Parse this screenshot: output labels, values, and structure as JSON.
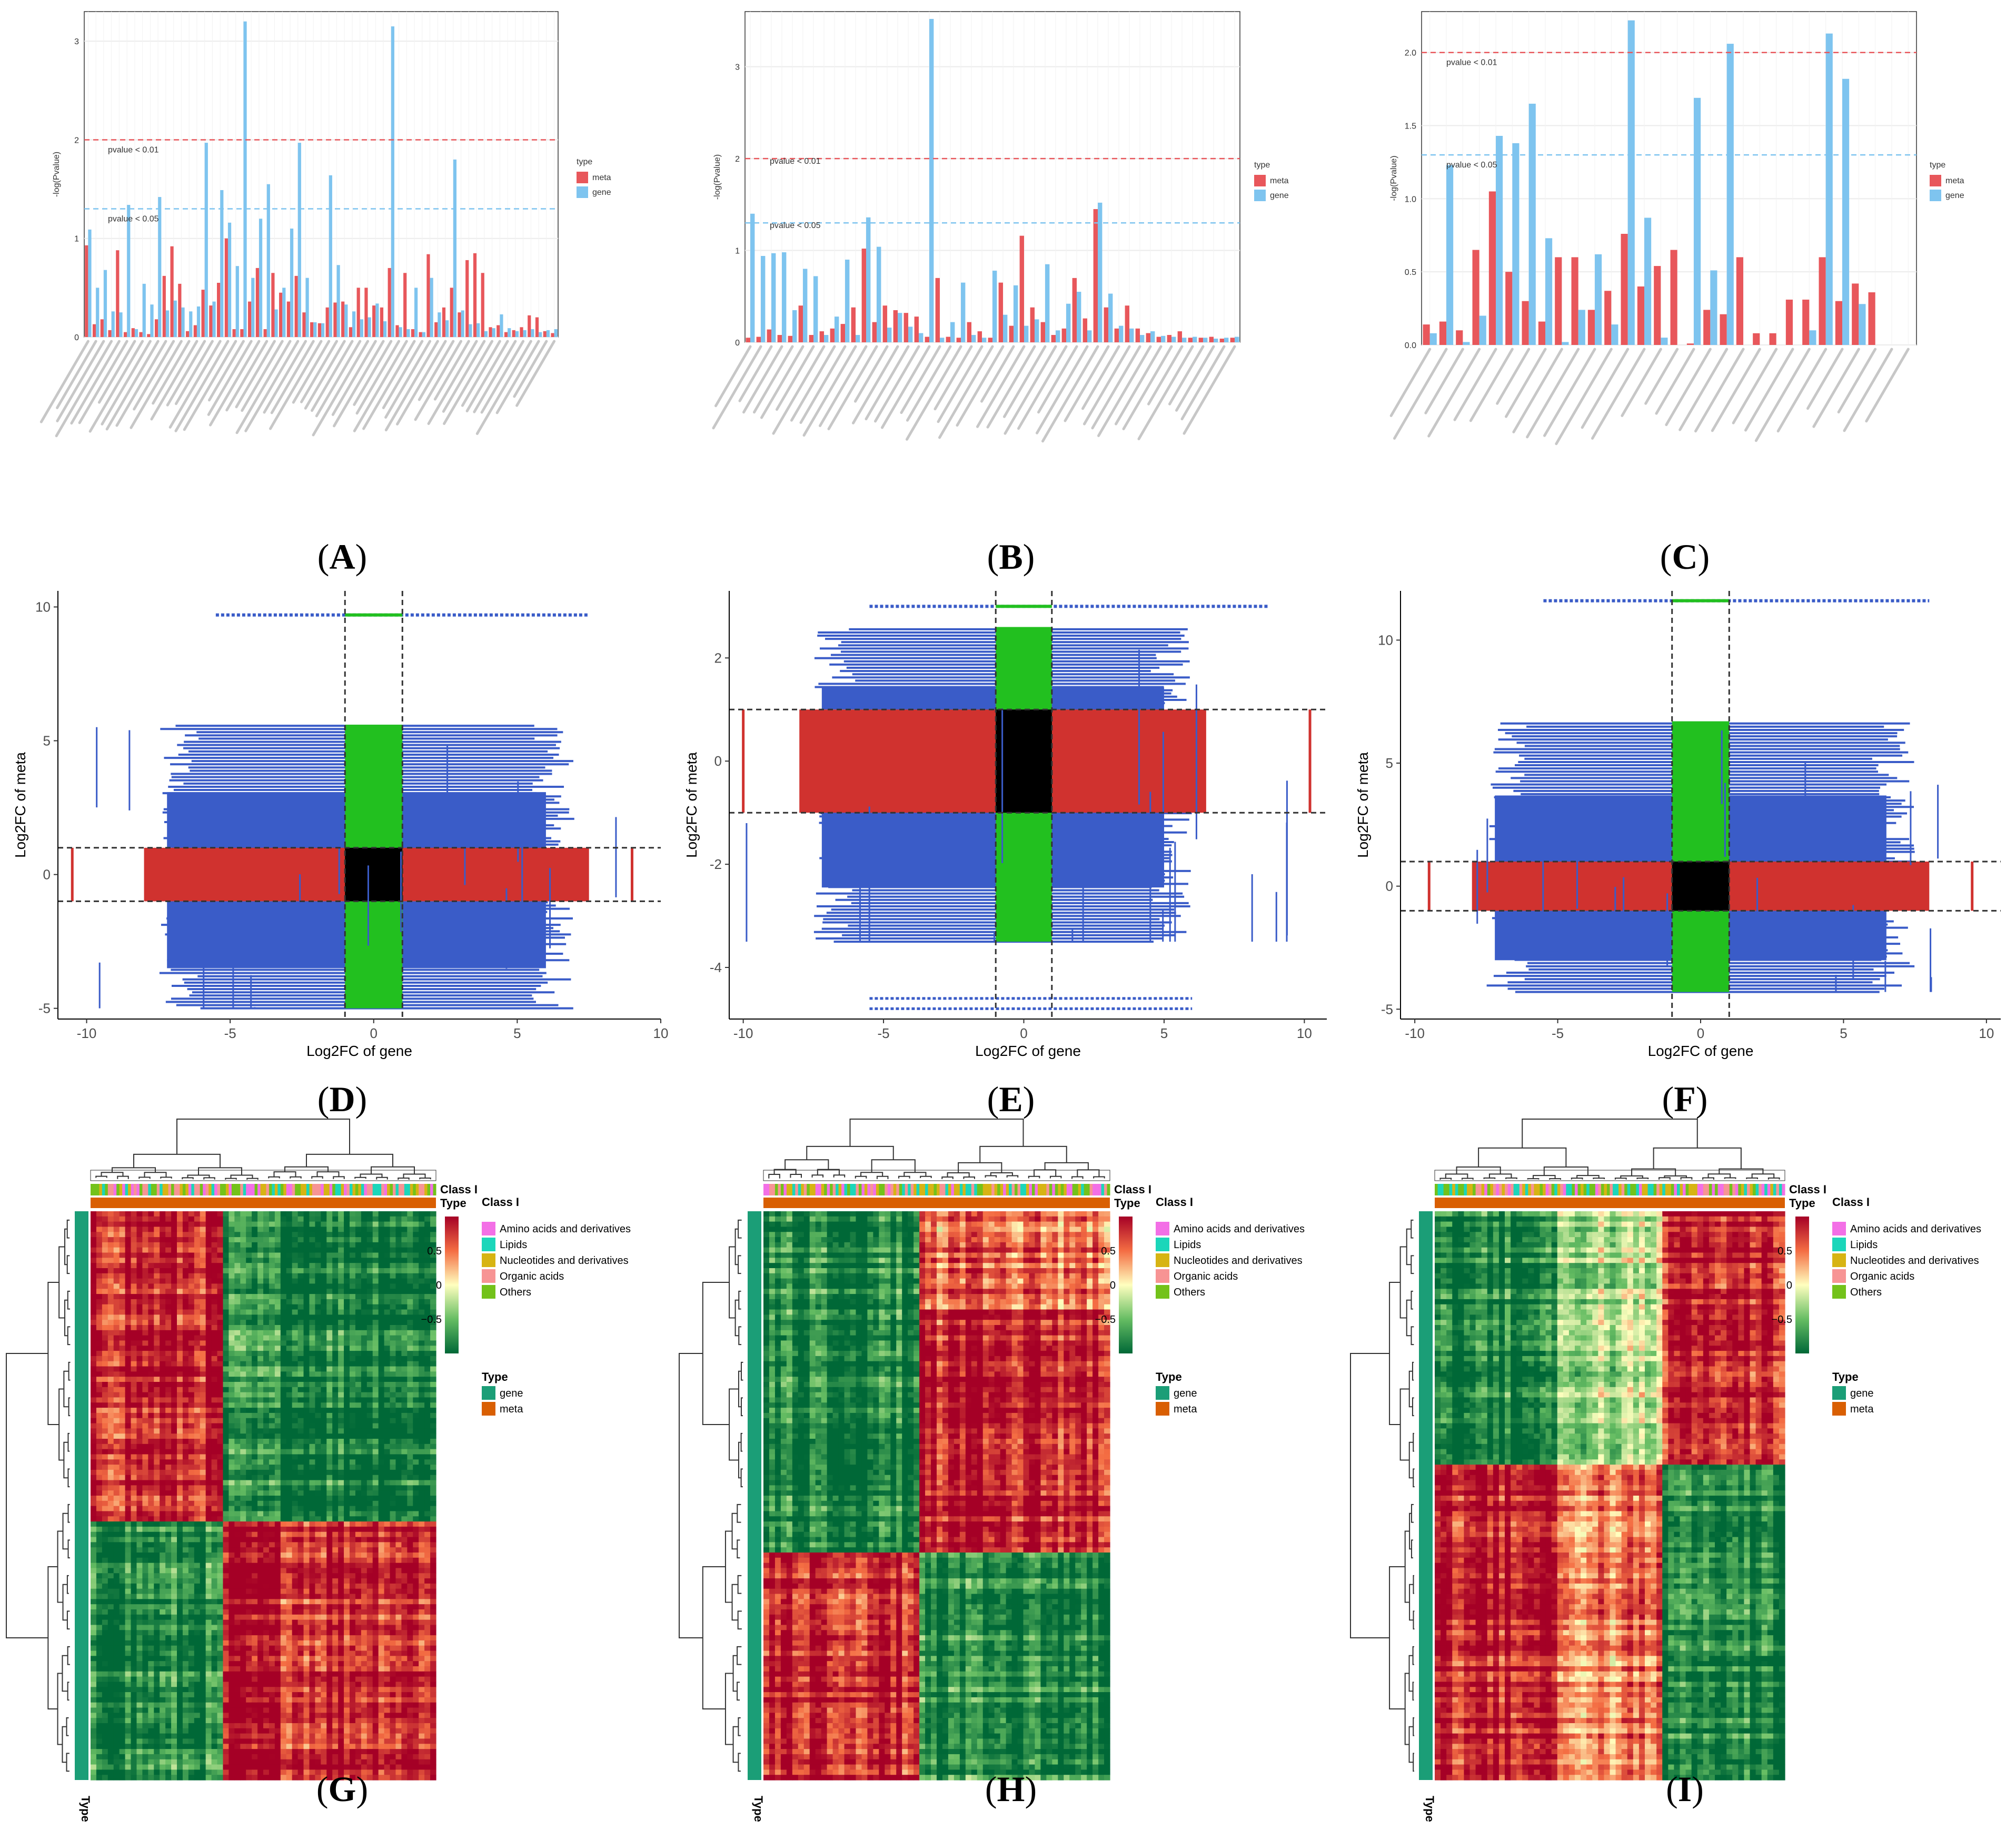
{
  "panel_labels": [
    "A",
    "B",
    "C",
    "D",
    "E",
    "F",
    "G",
    "H",
    "I"
  ],
  "colors": {
    "meta": "#e8575b",
    "gene": "#7ec4ef",
    "pvalue01_line": "#e8575b",
    "pvalue05_line": "#7ec4ef",
    "scatter_blue": "#3a5cc8",
    "scatter_red": "#d0322f",
    "scatter_green": "#22c01f",
    "scatter_black": "#000000",
    "class_amino": "#f36fe6",
    "class_lipids": "#1bd6ba",
    "class_nucleotides": "#d7b413",
    "class_organic": "#f79494",
    "class_others": "#73c21a",
    "type_gene": "#1b9e77",
    "type_meta": "#d95f02",
    "heat_high": "#a50026",
    "heat_mid": "#ffffbf",
    "heat_low": "#006837"
  },
  "chart_data": [
    {
      "panel": "A",
      "type": "bar",
      "ylabel": "-log(Pvalue)",
      "ylim": [
        0,
        3.3
      ],
      "yticks": [
        "0",
        "1",
        "2",
        "3"
      ],
      "thresholds": [
        {
          "label": "pvalue < 0.01",
          "value": 2.0
        },
        {
          "label": "pvalue < 0.05",
          "value": 1.3
        }
      ],
      "legend": {
        "title": "type",
        "entries": [
          "meta",
          "gene"
        ],
        "position": "right"
      },
      "grid": true,
      "categories_count": 61,
      "series": [
        {
          "name": "meta",
          "values": [
            0.93,
            0.13,
            0.18,
            0.07,
            0.88,
            0.05,
            0.09,
            0.05,
            0.03,
            0.18,
            0.62,
            0.92,
            0.54,
            0.06,
            0.12,
            0.48,
            0.32,
            0.55,
            1.0,
            0.08,
            0.08,
            0.36,
            0.7,
            0.08,
            0.65,
            0.45,
            0.36,
            0.62,
            0.25,
            0.15,
            0.14,
            0.3,
            0.35,
            0.36,
            0.1,
            0.5,
            0.5,
            0.32,
            0.3,
            0.7,
            0.12,
            0.65,
            0.08,
            0.05,
            0.84,
            0.15,
            0.3,
            0.5,
            0.25,
            0.78,
            0.85,
            0.65,
            0.1,
            0.12,
            0.05,
            0.07,
            0.1,
            0.22,
            0.2,
            0.06,
            0.04
          ]
        },
        {
          "name": "gene",
          "values": [
            1.09,
            0.5,
            0.68,
            0.26,
            0.25,
            1.34,
            0.08,
            0.54,
            0.33,
            1.42,
            0.27,
            0.37,
            0.3,
            0.26,
            0.31,
            1.97,
            0.36,
            1.49,
            1.16,
            0.72,
            3.2,
            0.6,
            1.2,
            1.55,
            0.28,
            0.5,
            1.1,
            1.97,
            0.6,
            0.15,
            0.14,
            1.64,
            0.73,
            0.33,
            0.26,
            0.18,
            0.2,
            0.34,
            0.16,
            3.15,
            0.1,
            0.08,
            0.5,
            0.05,
            0.6,
            0.25,
            0.17,
            1.8,
            0.27,
            0.13,
            0.14,
            0.06,
            0.09,
            0.23,
            0.09,
            0.06,
            0.07,
            0.08,
            0.05,
            0.07,
            0.08
          ]
        }
      ]
    },
    {
      "panel": "B",
      "type": "bar",
      "ylabel": "-log(Pvalue)",
      "ylim": [
        0,
        3.6
      ],
      "yticks": [
        "0",
        "1",
        "2",
        "3"
      ],
      "thresholds": [
        {
          "label": "pvalue < 0.01",
          "value": 2.0
        },
        {
          "label": "pvalue < 0.05",
          "value": 1.3
        }
      ],
      "legend": {
        "title": "type",
        "entries": [
          "meta",
          "gene"
        ],
        "position": "right"
      },
      "grid": true,
      "categories_count": 47,
      "series": [
        {
          "name": "meta",
          "values": [
            0.05,
            0.06,
            0.14,
            0.08,
            0.07,
            0.4,
            0.08,
            0.12,
            0.15,
            0.2,
            0.38,
            1.02,
            0.22,
            0.4,
            0.35,
            0.32,
            0.28,
            0.06,
            0.7,
            0.06,
            0.05,
            0.22,
            0.12,
            0.05,
            0.65,
            0.18,
            1.16,
            0.38,
            0.22,
            0.08,
            0.15,
            0.7,
            0.26,
            1.45,
            0.38,
            0.15,
            0.4,
            0.15,
            0.1,
            0.06,
            0.08,
            0.12,
            0.05,
            0.05,
            0.06,
            0.04,
            0.05
          ]
        },
        {
          "name": "gene",
          "values": [
            1.4,
            0.94,
            0.97,
            0.98,
            0.35,
            0.8,
            0.72,
            0.08,
            0.28,
            0.9,
            0.08,
            1.36,
            1.04,
            0.16,
            0.32,
            0.17,
            0.1,
            3.52,
            0.05,
            0.22,
            0.65,
            0.08,
            0.05,
            0.78,
            0.3,
            0.62,
            0.18,
            0.25,
            0.85,
            0.13,
            0.42,
            0.55,
            0.13,
            1.52,
            0.53,
            0.18,
            0.15,
            0.08,
            0.12,
            0.07,
            0.06,
            0.05,
            0.06,
            0.05,
            0.04,
            0.05,
            0.06
          ]
        }
      ]
    },
    {
      "panel": "C",
      "type": "bar",
      "ylabel": "-log(Pvalue)",
      "ylim": [
        0,
        2.28
      ],
      "yticks": [
        "0.0",
        "0.5",
        "1.0",
        "1.5",
        "2.0"
      ],
      "thresholds": [
        {
          "label": "pvalue < 0.01",
          "value": 2.0
        },
        {
          "label": "pvalue < 0.05",
          "value": 1.3
        }
      ],
      "legend": {
        "title": "type",
        "entries": [
          "meta",
          "gene"
        ],
        "position": "right"
      },
      "grid": true,
      "categories_count": 30,
      "series": [
        {
          "name": "meta",
          "values": [
            0.14,
            0.16,
            0.1,
            0.65,
            1.05,
            0.5,
            0.3,
            0.16,
            0.6,
            0.6,
            0.24,
            0.37,
            0.76,
            0.4,
            0.54,
            0.65,
            0.01,
            0.24,
            0.21,
            0.6,
            0.08,
            0.08,
            0.31,
            0.31,
            0.6,
            0.3,
            0.42,
            0.36,
            0.0,
            0.0
          ]
        },
        {
          "name": "gene",
          "values": [
            0.08,
            1.23,
            0.02,
            0.2,
            1.43,
            1.38,
            1.65,
            0.73,
            0.02,
            0.24,
            0.62,
            0.14,
            2.22,
            0.87,
            0.05,
            0.0,
            1.69,
            0.51,
            2.06,
            0.0,
            0.0,
            0.0,
            0.0,
            0.1,
            2.13,
            1.82,
            0.28,
            0.0,
            0.0,
            0.0
          ]
        }
      ]
    },
    {
      "panel": "D",
      "type": "scatter",
      "xlabel": "Log2FC of gene",
      "ylabel": "Log2FC of meta",
      "xlim": [
        -11,
        10
      ],
      "ylim": [
        -5.4,
        10.6
      ],
      "xticks": [
        -10,
        -5,
        0,
        5,
        10
      ],
      "yticks": [
        -5,
        0,
        5,
        10
      ],
      "cutoffs": {
        "x": [
          -1,
          1
        ],
        "y": [
          -1,
          1
        ]
      },
      "extent": {
        "gene": [
          -10.5,
          9
        ],
        "meta_low": -5,
        "meta_high": 5.6,
        "meta_top_row": 9.7,
        "gene_right_core": 7
      }
    },
    {
      "panel": "E",
      "type": "scatter",
      "xlabel": "Log2FC of gene",
      "ylabel": "Log2FC of meta",
      "xlim": [
        -10.5,
        10.8
      ],
      "ylim": [
        -5.0,
        3.3
      ],
      "xticks": [
        -10,
        -5,
        0,
        5,
        10
      ],
      "yticks": [
        -4,
        -2,
        0,
        2
      ],
      "cutoffs": {
        "x": [
          -1,
          1
        ],
        "y": [
          -1,
          1
        ]
      },
      "extent": {
        "gene": [
          -10,
          10.2
        ],
        "meta_low": -3.5,
        "meta_high": 2.6,
        "meta_top_row": 3.0,
        "meta_bottom_rows": [
          -4.6,
          -4.8
        ],
        "gene_right_core": 6
      }
    },
    {
      "panel": "F",
      "type": "scatter",
      "xlabel": "Log2FC of gene",
      "ylabel": "Log2FC of meta",
      "xlim": [
        -10.5,
        10.5
      ],
      "ylim": [
        -5.4,
        12.0
      ],
      "xticks": [
        -10,
        -5,
        0,
        5,
        10
      ],
      "yticks": [
        -5,
        0,
        5,
        10
      ],
      "cutoffs": {
        "x": [
          -1,
          1
        ],
        "y": [
          -1,
          1
        ]
      },
      "extent": {
        "gene": [
          -9.5,
          9.5
        ],
        "meta_low": -4.3,
        "meta_high": 6.7,
        "meta_top_row": 11.6,
        "gene_right_core": 7.5
      }
    },
    {
      "panel": "G",
      "type": "heatmap",
      "scale": {
        "ticks": [
          "0.5",
          "0",
          "−0.5"
        ],
        "range": [
          -1,
          1
        ]
      },
      "column_annotations": [
        "Class I",
        "Type"
      ],
      "row_annotation": "Type",
      "row_blocks": [
        0.55,
        0.45
      ],
      "col_blocks": [
        0.38,
        0.62
      ],
      "pattern": [
        [
          1,
          -1
        ],
        [
          -1,
          1
        ]
      ]
    },
    {
      "panel": "H",
      "type": "heatmap",
      "scale": {
        "ticks": [
          "0.5",
          "0",
          "−0.5"
        ],
        "range": [
          -1,
          1
        ]
      },
      "column_annotations": [
        "Class I",
        "Type"
      ],
      "row_annotation": "Type",
      "row_blocks": [
        0.17,
        0.43,
        0.4
      ],
      "col_blocks": [
        0.45,
        0.55
      ],
      "pattern": [
        [
          -1,
          0.6
        ],
        [
          -1,
          1
        ],
        [
          1,
          -1
        ]
      ]
    },
    {
      "panel": "I",
      "type": "heatmap",
      "scale": {
        "ticks": [
          "0.5",
          "0",
          "−0.5"
        ],
        "range": [
          -1,
          1
        ]
      },
      "column_annotations": [
        "Class I",
        "Type"
      ],
      "row_annotation": "Type",
      "row_blocks": [
        0.45,
        0.55
      ],
      "col_blocks": [
        0.35,
        0.3,
        0.35
      ],
      "pattern": [
        [
          -1,
          -0.3,
          1
        ],
        [
          1,
          0.5,
          -1
        ]
      ]
    }
  ],
  "heatmap_legend": {
    "class_title": "Class I",
    "class_entries": [
      "Amino acids and derivatives",
      "Lipids",
      "Nucleotides and derivatives",
      "Organic acids",
      "Others"
    ],
    "type_title": "Type",
    "type_entries": [
      "gene",
      "meta"
    ]
  }
}
